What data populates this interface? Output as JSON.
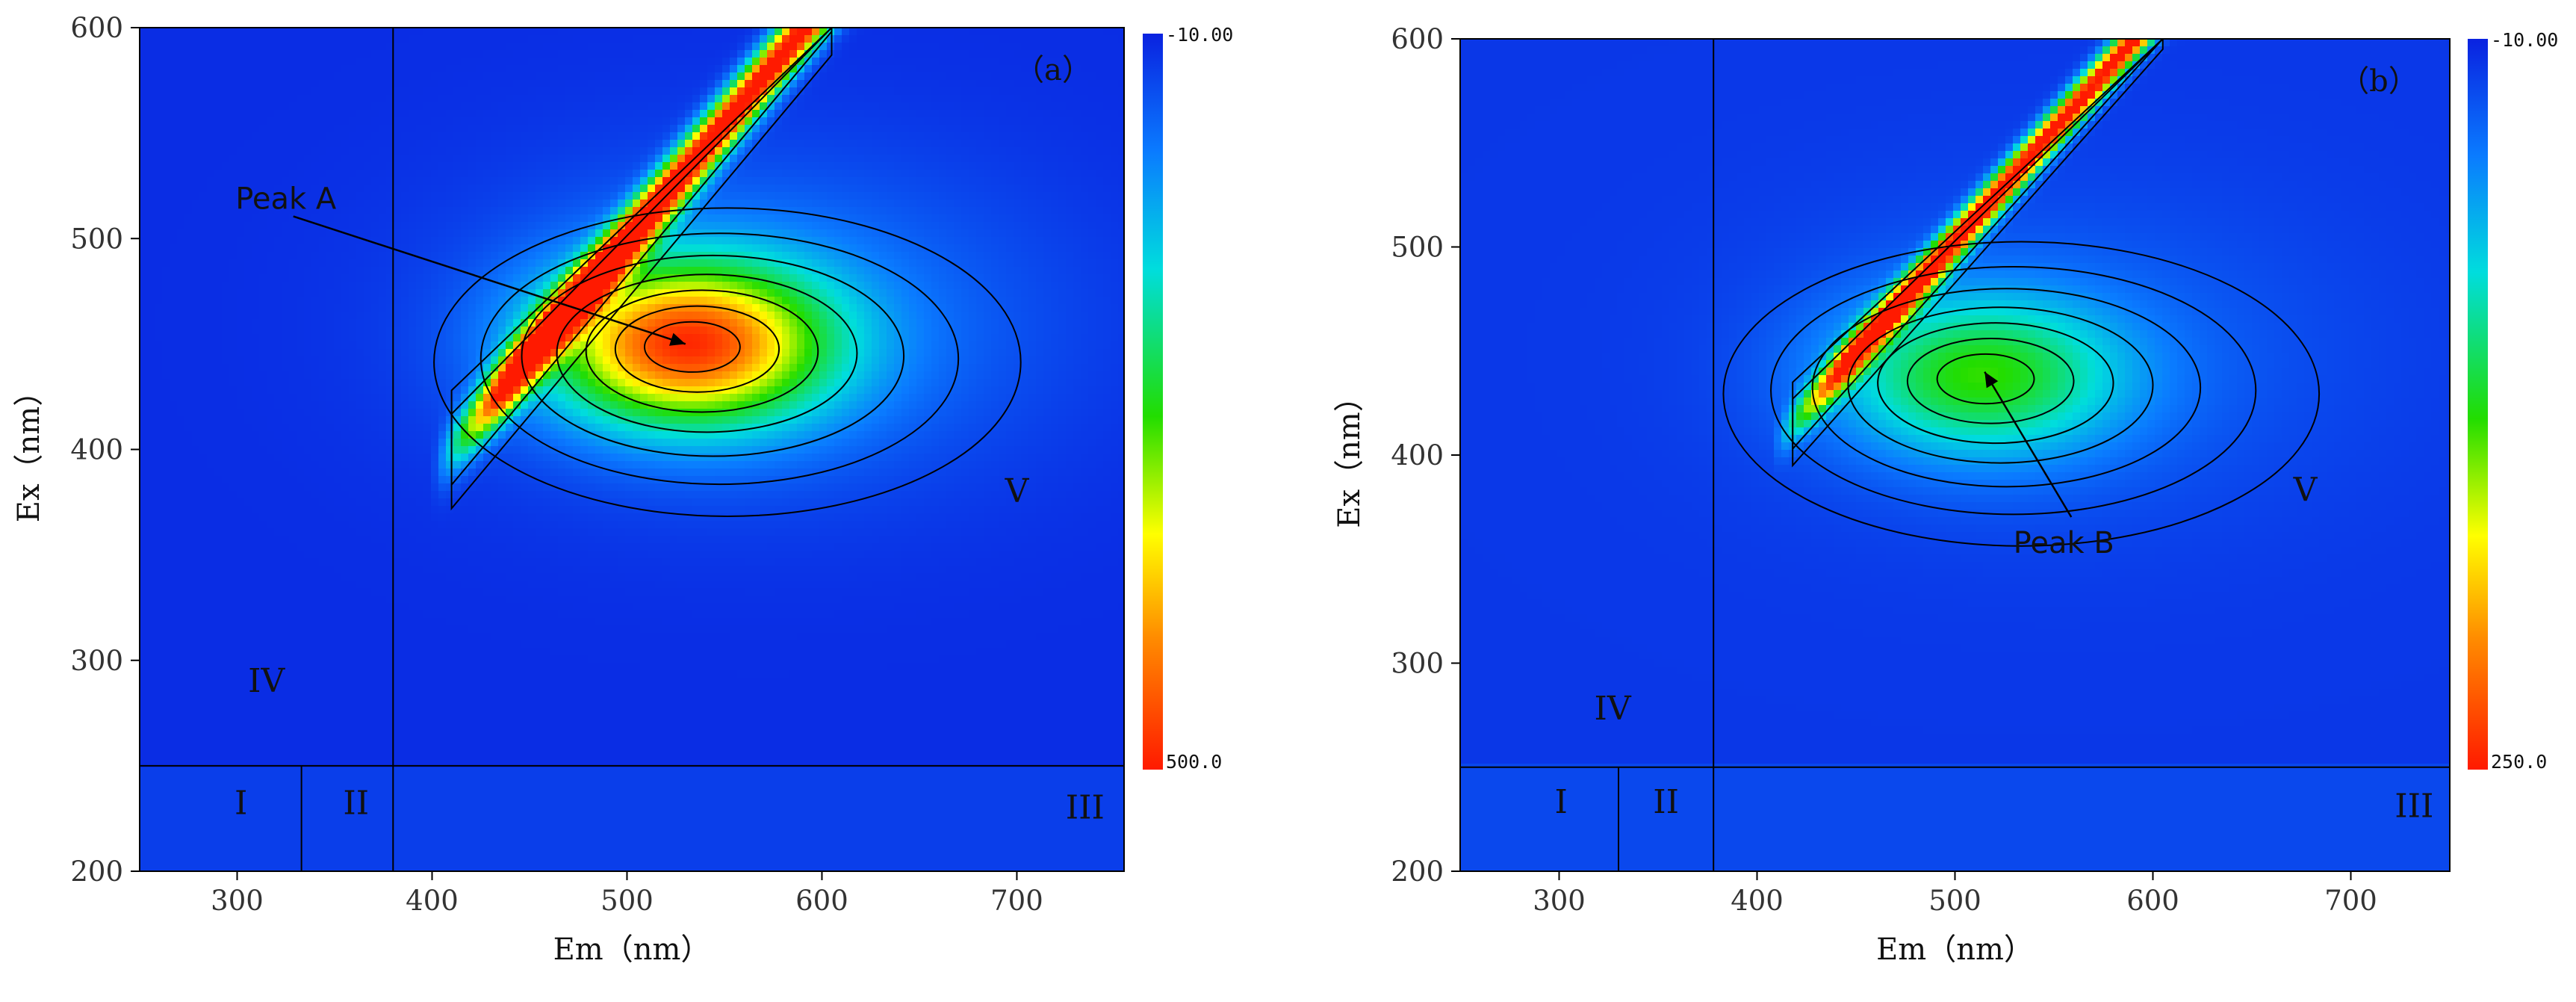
{
  "chart_data": [
    {
      "type": "heatmap",
      "panel_label": "（a）",
      "xlabel": "Em（nm）",
      "ylabel": "Ex（nm）",
      "xlim": [
        250,
        755
      ],
      "ylim": [
        200,
        600
      ],
      "xticks": [
        300,
        400,
        500,
        600,
        700
      ],
      "yticks": [
        200,
        300,
        400,
        500,
        600
      ],
      "colorbar": {
        "min_label": "-10.00",
        "max_label": "500.0",
        "min": -10,
        "max": 500
      },
      "divider_lines": {
        "em": [
          380
        ],
        "ex": [
          250
        ],
        "em_below_ex": [
          333
        ]
      },
      "regions": [
        {
          "label": "I",
          "em": 302,
          "ex": 232
        },
        {
          "label": "II",
          "em": 361,
          "ex": 232
        },
        {
          "label": "III",
          "em": 735,
          "ex": 230
        },
        {
          "label": "IV",
          "em": 315,
          "ex": 290
        },
        {
          "label": "V",
          "em": 700,
          "ex": 380
        }
      ],
      "peak": {
        "label": "Peak A",
        "em": 530,
        "ex": 450,
        "text_em": 325,
        "text_ex": 519
      },
      "components": [
        {
          "kind": "scatter_band",
          "em_range": [
            410,
            605
          ],
          "ex_at_start": 400,
          "ex_at_end": 615,
          "width": 14,
          "intensity": 500
        },
        {
          "kind": "peak",
          "em": 530,
          "ex": 450,
          "intensity": 420
        }
      ]
    },
    {
      "type": "heatmap",
      "panel_label": "（b）",
      "xlabel": "Em（nm）",
      "ylabel": "Ex（nm）",
      "xlim": [
        250,
        750
      ],
      "ylim": [
        200,
        600
      ],
      "xticks": [
        300,
        400,
        500,
        600,
        700
      ],
      "yticks": [
        200,
        300,
        400,
        500,
        600
      ],
      "colorbar": {
        "min_label": "-10.00",
        "max_label": "250.0",
        "min": -10,
        "max": 250
      },
      "divider_lines": {
        "em": [
          378
        ],
        "ex": [
          250
        ],
        "em_below_ex": [
          330
        ]
      },
      "regions": [
        {
          "label": "I",
          "em": 301,
          "ex": 233
        },
        {
          "label": "II",
          "em": 354,
          "ex": 233
        },
        {
          "label": "III",
          "em": 732,
          "ex": 231
        },
        {
          "label": "IV",
          "em": 327,
          "ex": 278
        },
        {
          "label": "V",
          "em": 677,
          "ex": 383
        }
      ],
      "peak": {
        "label": "Peak B",
        "em": 515,
        "ex": 440,
        "text_em": 555,
        "text_ex": 358
      },
      "components": [
        {
          "kind": "scatter_band",
          "em_range": [
            418,
            605
          ],
          "ex_at_start": 415,
          "ex_at_end": 615,
          "width": 10,
          "intensity": 250
        },
        {
          "kind": "peak",
          "em": 512,
          "ex": 438,
          "intensity": 110
        }
      ]
    }
  ]
}
